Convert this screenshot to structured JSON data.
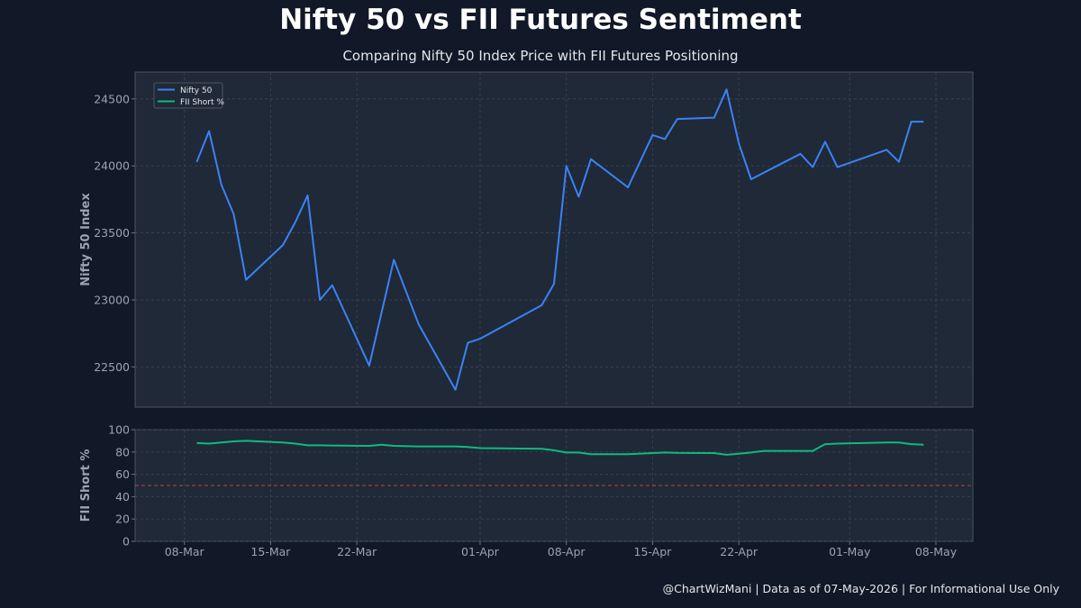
{
  "header": {
    "title": "Nifty 50 vs FII Futures Sentiment",
    "subtitle": "Comparing Nifty 50 Index Price with FII Futures Positioning"
  },
  "footer": {
    "text": "@ChartWizMani | Data as of 07-May-2026 | For Informational Use Only"
  },
  "colors": {
    "background": "#111827",
    "plot_background": "#1f2937",
    "nifty_line": "#3b82f6",
    "fii_line": "#10b981",
    "reference_line": "#ef4444"
  },
  "chart_data": [
    {
      "type": "line",
      "ylabel": "Nifty 50 Index",
      "xlabel": "",
      "ylim": [
        22200,
        24700
      ],
      "yticks": [
        22500,
        23000,
        23500,
        24000,
        24500
      ],
      "grid": true,
      "legend_position": "top-left",
      "legend": [
        "Nifty 50",
        "FII Short %"
      ],
      "series": [
        {
          "name": "Nifty 50",
          "x": [
            "2026-03-09",
            "2026-03-10",
            "2026-03-11",
            "2026-03-12",
            "2026-03-13",
            "2026-03-16",
            "2026-03-17",
            "2026-03-18",
            "2026-03-19",
            "2026-03-20",
            "2026-03-23",
            "2026-03-25",
            "2026-03-27",
            "2026-03-30",
            "2026-03-31",
            "2026-04-01",
            "2026-04-06",
            "2026-04-07",
            "2026-04-08",
            "2026-04-09",
            "2026-04-10",
            "2026-04-13",
            "2026-04-15",
            "2026-04-16",
            "2026-04-17",
            "2026-04-20",
            "2026-04-21",
            "2026-04-22",
            "2026-04-23",
            "2026-04-27",
            "2026-04-28",
            "2026-04-29",
            "2026-04-30",
            "2026-05-04",
            "2026-05-05",
            "2026-05-06",
            "2026-05-07"
          ],
          "values": [
            24030,
            24260,
            23860,
            23640,
            23150,
            23410,
            23580,
            23780,
            23000,
            23110,
            22510,
            23300,
            22820,
            22330,
            22680,
            22710,
            22960,
            23120,
            24000,
            23770,
            24050,
            23840,
            24230,
            24200,
            24350,
            24360,
            24570,
            24170,
            23900,
            24090,
            23990,
            24180,
            23990,
            24120,
            24030,
            24330,
            24330
          ]
        }
      ]
    },
    {
      "type": "line",
      "ylabel": "FII Short %",
      "xlabel": "",
      "ylim": [
        0,
        100
      ],
      "yticks": [
        0,
        20,
        40,
        60,
        80,
        100
      ],
      "reference_line": 50,
      "grid": true,
      "x_tick_labels": [
        "08-Mar",
        "15-Mar",
        "22-Mar",
        "01-Apr",
        "08-Apr",
        "15-Apr",
        "22-Apr",
        "01-May",
        "08-May"
      ],
      "series": [
        {
          "name": "FII Short %",
          "x": [
            "2026-03-09",
            "2026-03-10",
            "2026-03-11",
            "2026-03-12",
            "2026-03-13",
            "2026-03-16",
            "2026-03-17",
            "2026-03-18",
            "2026-03-19",
            "2026-03-20",
            "2026-03-23",
            "2026-03-24",
            "2026-03-25",
            "2026-03-27",
            "2026-03-30",
            "2026-03-31",
            "2026-04-01",
            "2026-04-06",
            "2026-04-07",
            "2026-04-08",
            "2026-04-09",
            "2026-04-10",
            "2026-04-13",
            "2026-04-15",
            "2026-04-16",
            "2026-04-17",
            "2026-04-20",
            "2026-04-21",
            "2026-04-22",
            "2026-04-23",
            "2026-04-24",
            "2026-04-27",
            "2026-04-28",
            "2026-04-29",
            "2026-04-30",
            "2026-05-04",
            "2026-05-05",
            "2026-05-06",
            "2026-05-07"
          ],
          "values": [
            88,
            87.5,
            88.5,
            89.5,
            90,
            88.5,
            87.5,
            86,
            86,
            85.8,
            85.5,
            86.5,
            85.5,
            85,
            85,
            84.5,
            83.5,
            82.8,
            81.5,
            79.5,
            79.5,
            78,
            78,
            79,
            79.5,
            79.2,
            79,
            77.5,
            78.5,
            79.5,
            81,
            81,
            81,
            87,
            87.5,
            88.5,
            88.5,
            87,
            86.5
          ]
        }
      ]
    }
  ]
}
